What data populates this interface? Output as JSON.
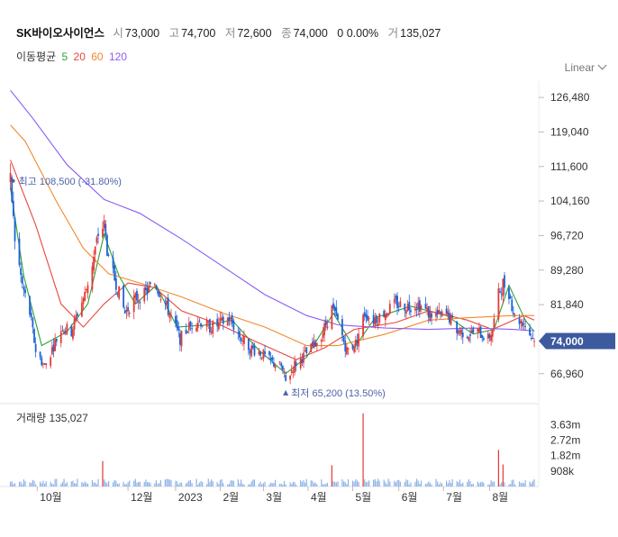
{
  "stock": {
    "name": "SK바이오사이언스",
    "open_label": "시",
    "open": "73,000",
    "high_label": "고",
    "high": "74,700",
    "low_label": "저",
    "low": "72,600",
    "close_label": "종",
    "close": "74,000",
    "change": "0 0.00%",
    "volume_label": "거",
    "volume": "135,027"
  },
  "moving_average": {
    "label": "이동평균",
    "periods": [
      {
        "label": "5",
        "color": "#2da03a"
      },
      {
        "label": "20",
        "color": "#e8483c"
      },
      {
        "label": "60",
        "color": "#f08a2c"
      },
      {
        "label": "120",
        "color": "#8b5cf6"
      }
    ]
  },
  "scale_button": "Linear",
  "colors": {
    "up": "#e53935",
    "down": "#1e63d6",
    "price_tag": "#3d5a9e",
    "annotation": "#4c63a8",
    "volume_bar": "#8fb2e8"
  },
  "chart_data": {
    "type": "candlestick",
    "price_ticks": [
      "126,480",
      "119,040",
      "111,600",
      "104,160",
      "96,720",
      "89,280",
      "81,840",
      "66,960"
    ],
    "price_ticks_values": [
      126480,
      119040,
      111600,
      104160,
      96720,
      89280,
      81840,
      66960
    ],
    "ylim": [
      64000,
      130000
    ],
    "current_price_label": "74,000",
    "current_price": 74000,
    "high_annotation": {
      "label": "최고",
      "value": "108,500 (-31.80%)"
    },
    "low_annotation": {
      "label": "최저",
      "value": "65,200 (13.50%)"
    },
    "x_ticks": [
      "10월",
      "12월",
      "2023",
      "2월",
      "3월",
      "4월",
      "5월",
      "6월",
      "7월",
      "8월"
    ],
    "price_path": [
      [
        "2022-09-13",
        108500
      ],
      [
        "2022-09-16",
        96000
      ],
      [
        "2022-09-21",
        86000
      ],
      [
        "2022-09-26",
        80000
      ],
      [
        "2022-09-30",
        72000
      ],
      [
        "2022-10-06",
        68500
      ],
      [
        "2022-10-12",
        73000
      ],
      [
        "2022-10-18",
        77000
      ],
      [
        "2022-10-24",
        76000
      ],
      [
        "2022-10-28",
        80000
      ],
      [
        "2022-11-02",
        84000
      ],
      [
        "2022-11-08",
        92000
      ],
      [
        "2022-11-11",
        97000
      ],
      [
        "2022-11-15",
        99000
      ],
      [
        "2022-11-18",
        91000
      ],
      [
        "2022-11-23",
        86500
      ],
      [
        "2022-11-29",
        80000
      ],
      [
        "2022-12-05",
        83000
      ],
      [
        "2022-12-12",
        84000
      ],
      [
        "2022-12-19",
        86500
      ],
      [
        "2022-12-23",
        84000
      ],
      [
        "2022-12-29",
        80000
      ],
      [
        "2023-01-05",
        74500
      ],
      [
        "2023-01-11",
        77000
      ],
      [
        "2023-01-17",
        78500
      ],
      [
        "2023-01-25",
        77000
      ],
      [
        "2023-01-31",
        77500
      ],
      [
        "2023-02-07",
        79000
      ],
      [
        "2023-02-14",
        75000
      ],
      [
        "2023-02-21",
        72500
      ],
      [
        "2023-02-28",
        71500
      ],
      [
        "2023-03-07",
        69500
      ],
      [
        "2023-03-14",
        68500
      ],
      [
        "2023-03-17",
        65200
      ],
      [
        "2023-03-23",
        69000
      ],
      [
        "2023-03-30",
        71000
      ],
      [
        "2023-04-05",
        73000
      ],
      [
        "2023-04-11",
        76000
      ],
      [
        "2023-04-17",
        81000
      ],
      [
        "2023-04-21",
        78000
      ],
      [
        "2023-04-27",
        72000
      ],
      [
        "2023-05-03",
        73500
      ],
      [
        "2023-05-09",
        80000
      ],
      [
        "2023-05-15",
        78500
      ],
      [
        "2023-05-22",
        80000
      ],
      [
        "2023-05-30",
        82000
      ],
      [
        "2023-06-07",
        81500
      ],
      [
        "2023-06-14",
        82000
      ],
      [
        "2023-06-21",
        80000
      ],
      [
        "2023-06-27",
        79500
      ],
      [
        "2023-07-04",
        79500
      ],
      [
        "2023-07-10",
        76500
      ],
      [
        "2023-07-17",
        75500
      ],
      [
        "2023-07-24",
        76000
      ],
      [
        "2023-07-31",
        74500
      ],
      [
        "2023-08-03",
        76500
      ],
      [
        "2023-08-07",
        84000
      ],
      [
        "2023-08-10",
        86500
      ],
      [
        "2023-08-14",
        84500
      ],
      [
        "2023-08-18",
        79000
      ],
      [
        "2023-08-24",
        78000
      ],
      [
        "2023-08-28",
        75500
      ],
      [
        "2023-08-31",
        74000
      ]
    ],
    "moving_averages": {
      "5": [
        [
          "2022-09-13",
          107000
        ],
        [
          "2022-09-22",
          88000
        ],
        [
          "2022-10-04",
          73000
        ],
        [
          "2022-10-21",
          76000
        ],
        [
          "2022-11-04",
          82000
        ],
        [
          "2022-11-15",
          97000
        ],
        [
          "2022-11-25",
          88000
        ],
        [
          "2022-12-06",
          82000
        ],
        [
          "2022-12-20",
          86000
        ],
        [
          "2023-01-03",
          77000
        ],
        [
          "2023-01-24",
          77500
        ],
        [
          "2023-02-09",
          78500
        ],
        [
          "2023-02-27",
          72000
        ],
        [
          "2023-03-17",
          67000
        ],
        [
          "2023-03-31",
          70500
        ],
        [
          "2023-04-18",
          80000
        ],
        [
          "2023-05-02",
          72500
        ],
        [
          "2023-05-16",
          79000
        ],
        [
          "2023-06-09",
          81500
        ],
        [
          "2023-07-03",
          79500
        ],
        [
          "2023-07-21",
          75500
        ],
        [
          "2023-08-04",
          76500
        ],
        [
          "2023-08-14",
          86000
        ],
        [
          "2023-08-25",
          78500
        ],
        [
          "2023-08-31",
          76000
        ]
      ],
      "20": [
        [
          "2022-09-13",
          113000
        ],
        [
          "2022-09-30",
          99000
        ],
        [
          "2022-10-17",
          82000
        ],
        [
          "2022-11-01",
          77000
        ],
        [
          "2022-11-15",
          82000
        ],
        [
          "2022-12-01",
          86500
        ],
        [
          "2022-12-19",
          85500
        ],
        [
          "2023-01-06",
          80500
        ],
        [
          "2023-02-01",
          77500
        ],
        [
          "2023-02-24",
          74000
        ],
        [
          "2023-03-24",
          70000
        ],
        [
          "2023-04-12",
          72500
        ],
        [
          "2023-05-02",
          76500
        ],
        [
          "2023-05-30",
          78000
        ],
        [
          "2023-06-21",
          80500
        ],
        [
          "2023-07-17",
          78500
        ],
        [
          "2023-08-03",
          76500
        ],
        [
          "2023-08-24",
          79500
        ],
        [
          "2023-08-31",
          78500
        ]
      ],
      "60": [
        [
          "2022-09-13",
          120500
        ],
        [
          "2022-09-23",
          117000
        ],
        [
          "2022-10-14",
          104000
        ],
        [
          "2022-11-01",
          94000
        ],
        [
          "2022-11-18",
          88500
        ],
        [
          "2022-12-09",
          86500
        ],
        [
          "2023-01-06",
          83500
        ],
        [
          "2023-02-03",
          80000
        ],
        [
          "2023-03-03",
          77000
        ],
        [
          "2023-03-31",
          73000
        ],
        [
          "2023-04-21",
          73000
        ],
        [
          "2023-05-23",
          75500
        ],
        [
          "2023-06-21",
          78500
        ],
        [
          "2023-07-17",
          79000
        ],
        [
          "2023-08-17",
          79500
        ],
        [
          "2023-08-31",
          79500
        ]
      ],
      "120": [
        [
          "2022-09-13",
          128000
        ],
        [
          "2022-09-28",
          122000
        ],
        [
          "2022-10-21",
          112000
        ],
        [
          "2022-11-15",
          104500
        ],
        [
          "2022-12-09",
          101500
        ],
        [
          "2023-01-06",
          96000
        ],
        [
          "2023-02-03",
          90000
        ],
        [
          "2023-03-03",
          84000
        ],
        [
          "2023-03-31",
          79500
        ],
        [
          "2023-04-21",
          77500
        ],
        [
          "2023-05-23",
          76800
        ],
        [
          "2023-06-21",
          76500
        ],
        [
          "2023-07-21",
          76800
        ],
        [
          "2023-08-17",
          76500
        ],
        [
          "2023-08-31",
          76200
        ]
      ]
    },
    "volume": {
      "label": "거래량",
      "value": "135,027",
      "ticks": [
        "3.63m",
        "2.72m",
        "1.82m",
        "908k"
      ],
      "ticks_values": [
        3630000,
        2720000,
        1820000,
        908000
      ],
      "spikes": [
        [
          "2022-11-14",
          1500000
        ],
        [
          "2023-04-17",
          1250000
        ],
        [
          "2023-05-08",
          4300000
        ],
        [
          "2023-08-07",
          2150000
        ],
        [
          "2023-08-10",
          1300000
        ]
      ],
      "typical": 220000
    }
  }
}
